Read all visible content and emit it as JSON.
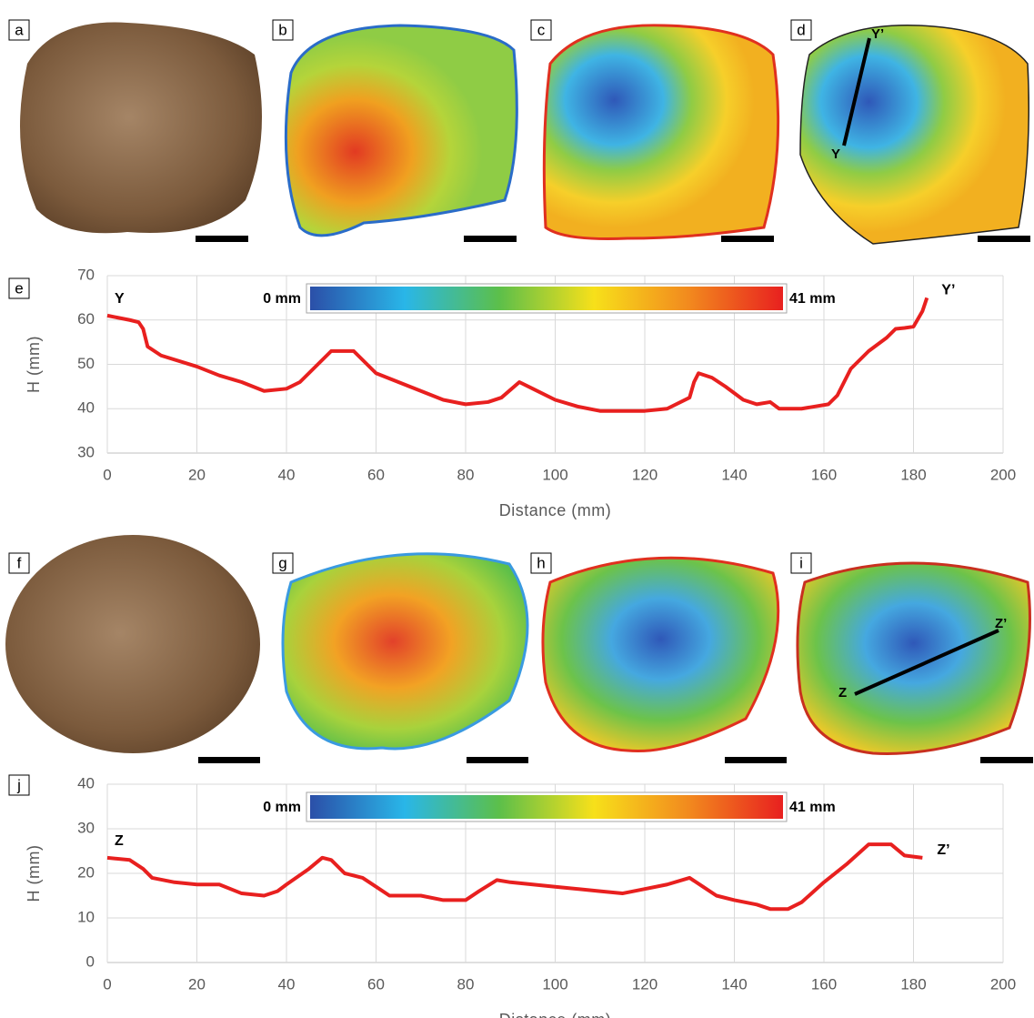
{
  "panels": {
    "labels": [
      "a",
      "b",
      "c",
      "d",
      "e",
      "f",
      "g",
      "h",
      "i",
      "j"
    ],
    "section_d": [
      "Y",
      "Y’"
    ],
    "section_i": [
      "Z",
      "Z’"
    ]
  },
  "chart_data": [
    {
      "type": "line",
      "xlabel": "Distance (mm)",
      "ylabel": "H (mm)",
      "xlim": [
        0,
        200
      ],
      "ylim": [
        30,
        70
      ],
      "xticks": [
        0,
        20,
        40,
        60,
        80,
        100,
        120,
        140,
        160,
        180,
        200
      ],
      "yticks": [
        30,
        40,
        50,
        60,
        70
      ],
      "grid": true,
      "annotations": [
        "Y",
        "Y’"
      ],
      "colorbar": {
        "min_label": "0 mm",
        "max_label": "41 mm",
        "colors": [
          "#2b4fa8",
          "#29b6e8",
          "#5cbf4a",
          "#f7e01a",
          "#f28a1e",
          "#e8201f"
        ]
      },
      "series": [
        {
          "color": "#e8201f",
          "x": [
            0,
            5,
            7,
            8,
            9,
            12,
            20,
            25,
            30,
            35,
            40,
            43,
            46,
            50,
            55,
            57,
            60,
            65,
            70,
            75,
            80,
            85,
            88,
            92,
            95,
            100,
            105,
            110,
            120,
            125,
            130,
            131,
            132,
            135,
            138,
            142,
            145,
            148,
            150,
            155,
            158,
            161,
            163,
            166,
            170,
            174,
            176,
            178,
            180,
            182,
            183
          ],
          "values": [
            61,
            60,
            59.5,
            58,
            54,
            52,
            49.5,
            47.5,
            46,
            44,
            44.5,
            46,
            49,
            53,
            53,
            51,
            48,
            46,
            44,
            42,
            41,
            41.5,
            42.5,
            46,
            44.5,
            42,
            40.5,
            39.5,
            39.5,
            40,
            42.5,
            46,
            48,
            47,
            45,
            42,
            41,
            41.5,
            40,
            40,
            40.5,
            41,
            43,
            49,
            53,
            56,
            58,
            58.2,
            58.5,
            62,
            65
          ]
        }
      ]
    },
    {
      "type": "line",
      "xlabel": "Distance (mm)",
      "ylabel": "H (mm)",
      "xlim": [
        0,
        200
      ],
      "ylim": [
        0,
        40
      ],
      "xticks": [
        0,
        20,
        40,
        60,
        80,
        100,
        120,
        140,
        160,
        180,
        200
      ],
      "yticks": [
        0,
        10,
        20,
        30,
        40
      ],
      "grid": true,
      "annotations": [
        "Z",
        "Z’"
      ],
      "colorbar": {
        "min_label": "0 mm",
        "max_label": "41 mm",
        "colors": [
          "#2b4fa8",
          "#29b6e8",
          "#5cbf4a",
          "#f7e01a",
          "#f28a1e",
          "#e8201f"
        ]
      },
      "series": [
        {
          "color": "#e8201f",
          "x": [
            0,
            5,
            8,
            10,
            15,
            20,
            25,
            30,
            35,
            38,
            40,
            45,
            48,
            50,
            53,
            57,
            60,
            63,
            70,
            75,
            80,
            83,
            87,
            90,
            95,
            100,
            110,
            115,
            120,
            125,
            130,
            133,
            136,
            140,
            145,
            148,
            152,
            155,
            160,
            165,
            170,
            175,
            178,
            182
          ],
          "values": [
            23.5,
            23,
            21,
            19,
            18,
            17.5,
            17.5,
            15.5,
            15,
            16,
            17.5,
            21,
            23.5,
            23,
            20,
            19,
            17,
            15,
            15,
            14,
            14,
            16,
            18.5,
            18,
            17.5,
            17,
            16,
            15.5,
            16.5,
            17.5,
            19,
            17,
            15,
            14,
            13,
            12,
            12,
            13.5,
            18,
            22,
            26.5,
            26.5,
            24,
            23.5
          ]
        }
      ]
    }
  ]
}
